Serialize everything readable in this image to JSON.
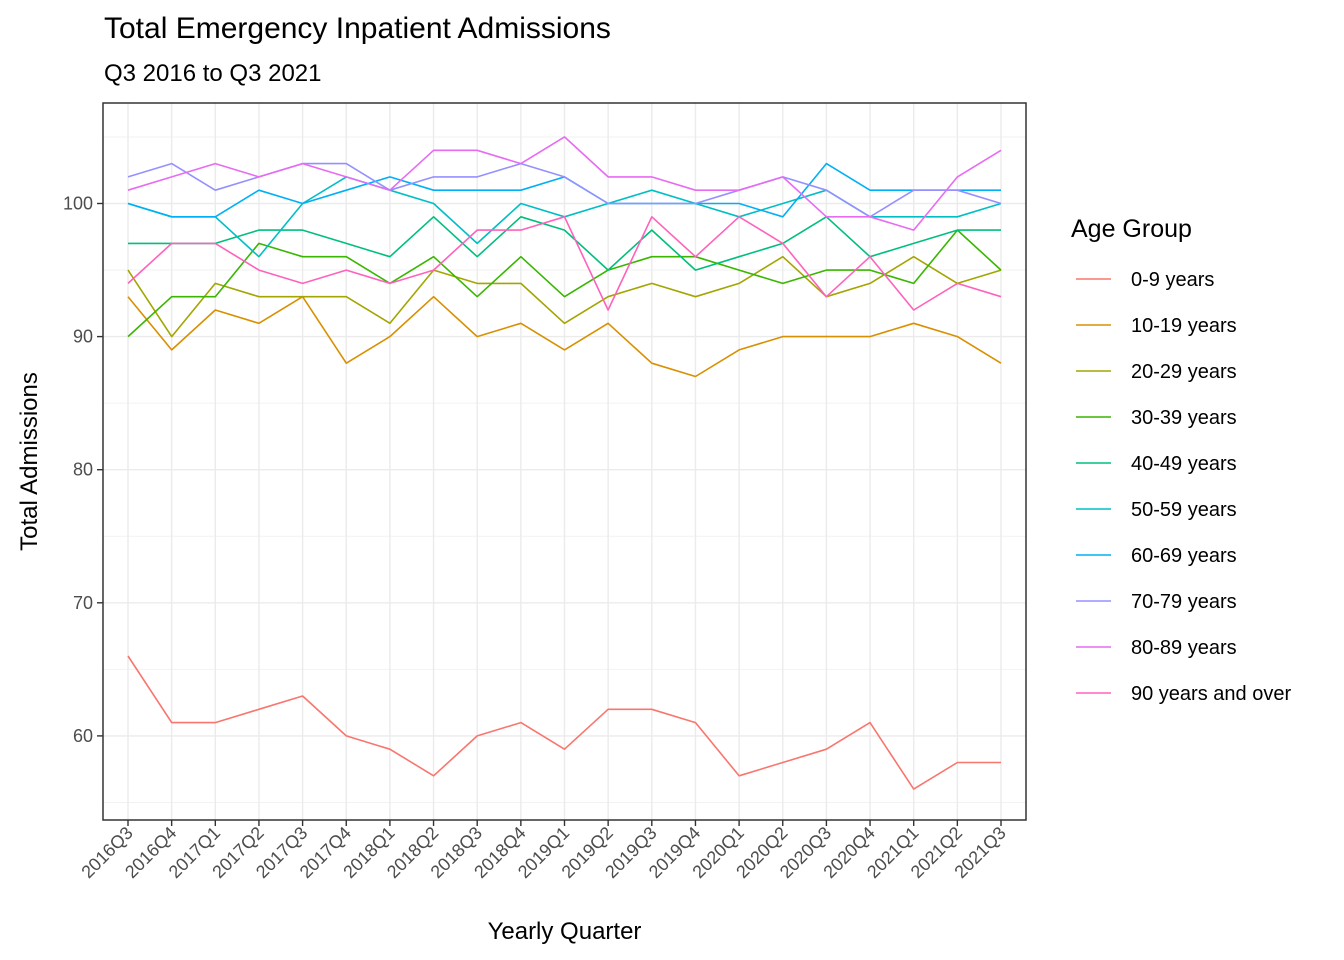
{
  "chart_data": {
    "type": "line",
    "title": "Total Emergency Inpatient Admissions",
    "subtitle": "Q3 2016 to Q3 2021",
    "xlabel": "Yearly Quarter",
    "ylabel": "Total Admissions",
    "ylim": [
      54,
      107
    ],
    "yticks": [
      60,
      70,
      80,
      90,
      100
    ],
    "grid": true,
    "legend_title": "Age Group",
    "legend_position": "right",
    "categories": [
      "2016Q3",
      "2016Q4",
      "2017Q1",
      "2017Q2",
      "2017Q3",
      "2017Q4",
      "2018Q1",
      "2018Q2",
      "2018Q3",
      "2018Q4",
      "2019Q1",
      "2019Q2",
      "2019Q3",
      "2019Q4",
      "2020Q1",
      "2020Q2",
      "2020Q3",
      "2020Q4",
      "2021Q1",
      "2021Q2",
      "2021Q3"
    ],
    "series": [
      {
        "name": "0-9 years",
        "color": "#F8766D",
        "values": [
          66,
          61,
          61,
          62,
          63,
          60,
          59,
          57,
          60,
          61,
          59,
          62,
          62,
          61,
          57,
          58,
          59,
          61,
          56,
          58,
          58
        ]
      },
      {
        "name": "10-19 years",
        "color": "#D89000",
        "values": [
          93,
          89,
          92,
          91,
          93,
          88,
          90,
          93,
          90,
          91,
          89,
          91,
          88,
          87,
          89,
          90,
          90,
          90,
          91,
          90,
          88
        ]
      },
      {
        "name": "20-29 years",
        "color": "#A3A500",
        "values": [
          95,
          90,
          94,
          93,
          93,
          93,
          91,
          95,
          94,
          94,
          91,
          93,
          94,
          93,
          94,
          96,
          93,
          94,
          96,
          94,
          95
        ]
      },
      {
        "name": "30-39 years",
        "color": "#39B600",
        "values": [
          90,
          93,
          93,
          97,
          96,
          96,
          94,
          96,
          93,
          96,
          93,
          95,
          96,
          96,
          95,
          94,
          95,
          95,
          94,
          98,
          95
        ]
      },
      {
        "name": "40-49 years",
        "color": "#00BF7D",
        "values": [
          97,
          97,
          97,
          98,
          98,
          97,
          96,
          99,
          96,
          99,
          98,
          95,
          98,
          95,
          96,
          97,
          99,
          96,
          97,
          98,
          98
        ]
      },
      {
        "name": "50-59 years",
        "color": "#00BFC4",
        "values": [
          100,
          99,
          99,
          96,
          100,
          102,
          101,
          100,
          97,
          100,
          99,
          100,
          101,
          100,
          99,
          100,
          101,
          99,
          99,
          99,
          100
        ]
      },
      {
        "name": "60-69 years",
        "color": "#00B0F6",
        "values": [
          100,
          99,
          99,
          101,
          100,
          101,
          102,
          101,
          101,
          101,
          102,
          100,
          100,
          100,
          100,
          99,
          103,
          101,
          101,
          101,
          101
        ]
      },
      {
        "name": "70-79 years",
        "color": "#9590FF",
        "values": [
          102,
          103,
          101,
          102,
          103,
          103,
          101,
          102,
          102,
          103,
          102,
          100,
          100,
          100,
          101,
          102,
          101,
          99,
          101,
          101,
          100
        ]
      },
      {
        "name": "80-89 years",
        "color": "#E76BF3",
        "values": [
          101,
          102,
          103,
          102,
          103,
          102,
          101,
          104,
          104,
          103,
          105,
          102,
          102,
          101,
          101,
          102,
          99,
          99,
          98,
          102,
          104
        ]
      },
      {
        "name": "90 years and over",
        "color": "#FF62BC",
        "values": [
          94,
          97,
          97,
          95,
          94,
          95,
          94,
          95,
          98,
          98,
          99,
          92,
          99,
          96,
          99,
          97,
          93,
          96,
          92,
          94,
          93
        ]
      }
    ]
  }
}
